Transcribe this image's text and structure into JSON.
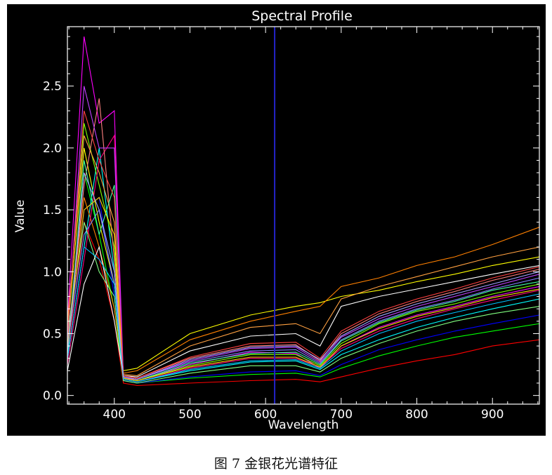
{
  "chart_data": {
    "type": "line",
    "title": "Spectral Profile",
    "xlabel": "Wavelength",
    "ylabel": "Value",
    "xlim": [
      338,
      962
    ],
    "ylim": [
      -0.07,
      2.98
    ],
    "xticks": [
      400,
      500,
      600,
      700,
      800,
      900
    ],
    "yticks": [
      0.0,
      0.5,
      1.0,
      1.5,
      2.0,
      2.5
    ],
    "ytick_labels": [
      "0.0",
      "0.5",
      "1.0",
      "1.5",
      "2.0",
      "2.5"
    ],
    "marker_wavelength": 612,
    "background": "#000000",
    "axis_color": "#ffffff",
    "marker_color": "#2323c8",
    "series_colors": [
      "#ff0000",
      "#00ff00",
      "#0000ff",
      "#ffff00",
      "#ff00ff",
      "#00ffff",
      "#ff8000",
      "#80ff00",
      "#ff0080",
      "#8080ff",
      "#ff8080",
      "#80ff80",
      "#ffffff",
      "#ffa040",
      "#40ffa0",
      "#c040ff",
      "#ffd700",
      "#00c0ff",
      "#ff4040",
      "#a0a0ff"
    ],
    "series": [
      {
        "x": [
          338,
          360,
          380,
          400,
          412,
          430,
          500,
          580,
          640,
          672,
          700,
          750,
          800,
          850,
          900,
          962
        ],
        "y": [
          0.3,
          1.4,
          1.1,
          0.6,
          0.1,
          0.08,
          0.1,
          0.12,
          0.13,
          0.11,
          0.15,
          0.22,
          0.28,
          0.33,
          0.4,
          0.45
        ]
      },
      {
        "x": [
          338,
          360,
          380,
          400,
          412,
          430,
          500,
          580,
          640,
          672,
          700,
          750,
          800,
          850,
          900,
          962
        ],
        "y": [
          0.4,
          1.8,
          1.3,
          0.7,
          0.12,
          0.1,
          0.14,
          0.17,
          0.18,
          0.15,
          0.22,
          0.32,
          0.4,
          0.47,
          0.52,
          0.58
        ]
      },
      {
        "x": [
          338,
          360,
          380,
          400,
          412,
          430,
          500,
          580,
          640,
          672,
          700,
          750,
          800,
          850,
          900,
          962
        ],
        "y": [
          0.35,
          1.5,
          1.6,
          0.8,
          0.12,
          0.1,
          0.15,
          0.19,
          0.2,
          0.16,
          0.25,
          0.37,
          0.45,
          0.52,
          0.58,
          0.65
        ]
      },
      {
        "x": [
          338,
          360,
          380,
          400,
          412,
          430,
          500,
          580,
          640,
          672,
          700,
          750,
          800,
          850,
          900,
          962
        ],
        "y": [
          0.5,
          2.0,
          1.4,
          0.9,
          0.2,
          0.22,
          0.5,
          0.65,
          0.72,
          0.75,
          0.8,
          0.85,
          0.92,
          0.98,
          1.05,
          1.12
        ]
      },
      {
        "x": [
          338,
          360,
          380,
          400,
          412,
          430,
          500,
          580,
          640,
          672,
          700,
          750,
          800,
          850,
          900,
          962
        ],
        "y": [
          0.6,
          2.9,
          2.2,
          2.3,
          0.15,
          0.12,
          0.25,
          0.35,
          0.34,
          0.22,
          0.4,
          0.55,
          0.65,
          0.72,
          0.8,
          0.88
        ]
      },
      {
        "x": [
          338,
          360,
          380,
          400,
          412,
          430,
          500,
          580,
          640,
          672,
          700,
          750,
          800,
          850,
          900,
          962
        ],
        "y": [
          0.3,
          1.2,
          2.0,
          1.0,
          0.13,
          0.11,
          0.2,
          0.27,
          0.28,
          0.21,
          0.33,
          0.45,
          0.55,
          0.63,
          0.7,
          0.78
        ]
      },
      {
        "x": [
          338,
          360,
          380,
          400,
          412,
          430,
          500,
          580,
          640,
          672,
          700,
          750,
          800,
          850,
          900,
          962
        ],
        "y": [
          0.45,
          1.6,
          1.2,
          0.7,
          0.18,
          0.2,
          0.45,
          0.6,
          0.68,
          0.72,
          0.88,
          0.95,
          1.05,
          1.12,
          1.22,
          1.36
        ]
      },
      {
        "x": [
          338,
          360,
          380,
          400,
          412,
          430,
          500,
          580,
          640,
          672,
          700,
          750,
          800,
          850,
          900,
          962
        ],
        "y": [
          0.55,
          2.2,
          1.7,
          1.2,
          0.14,
          0.12,
          0.24,
          0.33,
          0.33,
          0.24,
          0.42,
          0.58,
          0.68,
          0.74,
          0.82,
          0.9
        ]
      },
      {
        "x": [
          338,
          360,
          380,
          400,
          412,
          430,
          500,
          580,
          640,
          672,
          700,
          750,
          800,
          850,
          900,
          962
        ],
        "y": [
          0.25,
          1.1,
          1.9,
          2.1,
          0.13,
          0.11,
          0.22,
          0.3,
          0.3,
          0.23,
          0.38,
          0.52,
          0.62,
          0.7,
          0.77,
          0.85
        ]
      },
      {
        "x": [
          338,
          360,
          380,
          400,
          412,
          430,
          500,
          580,
          640,
          672,
          700,
          750,
          800,
          850,
          900,
          962
        ],
        "y": [
          0.4,
          1.3,
          1.5,
          0.9,
          0.15,
          0.13,
          0.27,
          0.36,
          0.37,
          0.26,
          0.45,
          0.6,
          0.7,
          0.77,
          0.86,
          0.95
        ]
      },
      {
        "x": [
          338,
          360,
          380,
          400,
          412,
          430,
          500,
          580,
          640,
          672,
          700,
          750,
          800,
          850,
          900,
          962
        ],
        "y": [
          0.35,
          1.7,
          2.4,
          1.1,
          0.16,
          0.14,
          0.3,
          0.4,
          0.41,
          0.28,
          0.5,
          0.66,
          0.76,
          0.84,
          0.93,
          1.02
        ]
      },
      {
        "x": [
          338,
          360,
          380,
          400,
          412,
          430,
          500,
          580,
          640,
          672,
          700,
          750,
          800,
          850,
          900,
          962
        ],
        "y": [
          0.5,
          1.4,
          1.0,
          0.8,
          0.12,
          0.1,
          0.18,
          0.24,
          0.24,
          0.19,
          0.3,
          0.42,
          0.52,
          0.6,
          0.66,
          0.72
        ]
      },
      {
        "x": [
          338,
          360,
          380,
          400,
          412,
          430,
          500,
          580,
          640,
          672,
          700,
          750,
          800,
          850,
          900,
          962
        ],
        "y": [
          0.2,
          0.9,
          1.2,
          0.6,
          0.16,
          0.15,
          0.36,
          0.48,
          0.5,
          0.4,
          0.72,
          0.8,
          0.86,
          0.92,
          0.98,
          1.05
        ]
      },
      {
        "x": [
          338,
          360,
          380,
          400,
          412,
          430,
          500,
          580,
          640,
          672,
          700,
          750,
          800,
          850,
          900,
          962
        ],
        "y": [
          0.6,
          2.1,
          1.8,
          1.4,
          0.17,
          0.16,
          0.4,
          0.55,
          0.58,
          0.5,
          0.78,
          0.88,
          0.96,
          1.04,
          1.12,
          1.2
        ]
      },
      {
        "x": [
          338,
          360,
          380,
          400,
          412,
          430,
          500,
          580,
          640,
          672,
          700,
          750,
          800,
          850,
          900,
          962
        ],
        "y": [
          0.3,
          1.9,
          1.3,
          1.7,
          0.14,
          0.12,
          0.26,
          0.34,
          0.35,
          0.25,
          0.44,
          0.59,
          0.69,
          0.76,
          0.85,
          0.92
        ]
      },
      {
        "x": [
          338,
          360,
          380,
          400,
          412,
          430,
          500,
          580,
          640,
          672,
          700,
          750,
          800,
          850,
          900,
          962
        ],
        "y": [
          0.45,
          2.5,
          2.0,
          2.0,
          0.15,
          0.13,
          0.28,
          0.38,
          0.39,
          0.27,
          0.47,
          0.62,
          0.72,
          0.8,
          0.88,
          0.98
        ]
      },
      {
        "x": [
          338,
          360,
          380,
          400,
          412,
          430,
          500,
          580,
          640,
          672,
          700,
          750,
          800,
          850,
          900,
          962
        ],
        "y": [
          0.4,
          1.5,
          1.6,
          1.3,
          0.14,
          0.12,
          0.23,
          0.31,
          0.31,
          0.23,
          0.4,
          0.54,
          0.64,
          0.71,
          0.79,
          0.86
        ]
      },
      {
        "x": [
          338,
          360,
          380,
          400,
          412,
          430,
          500,
          580,
          640,
          672,
          700,
          750,
          800,
          850,
          900,
          962
        ],
        "y": [
          0.3,
          1.2,
          1.1,
          0.9,
          0.13,
          0.11,
          0.21,
          0.28,
          0.29,
          0.22,
          0.36,
          0.5,
          0.6,
          0.67,
          0.74,
          0.82
        ]
      },
      {
        "x": [
          338,
          360,
          380,
          400,
          412,
          430,
          500,
          580,
          640,
          672,
          700,
          750,
          800,
          850,
          900,
          962
        ],
        "y": [
          0.5,
          2.3,
          1.9,
          1.6,
          0.16,
          0.14,
          0.31,
          0.42,
          0.43,
          0.3,
          0.52,
          0.68,
          0.78,
          0.86,
          0.95,
          1.04
        ]
      },
      {
        "x": [
          338,
          360,
          380,
          400,
          412,
          430,
          500,
          580,
          640,
          672,
          700,
          750,
          800,
          850,
          900,
          962
        ],
        "y": [
          0.35,
          1.8,
          1.5,
          1.0,
          0.15,
          0.13,
          0.29,
          0.39,
          0.4,
          0.29,
          0.48,
          0.64,
          0.74,
          0.82,
          0.9,
          1.0
        ]
      }
    ]
  },
  "caption": "图 7  金银花光谱特征"
}
